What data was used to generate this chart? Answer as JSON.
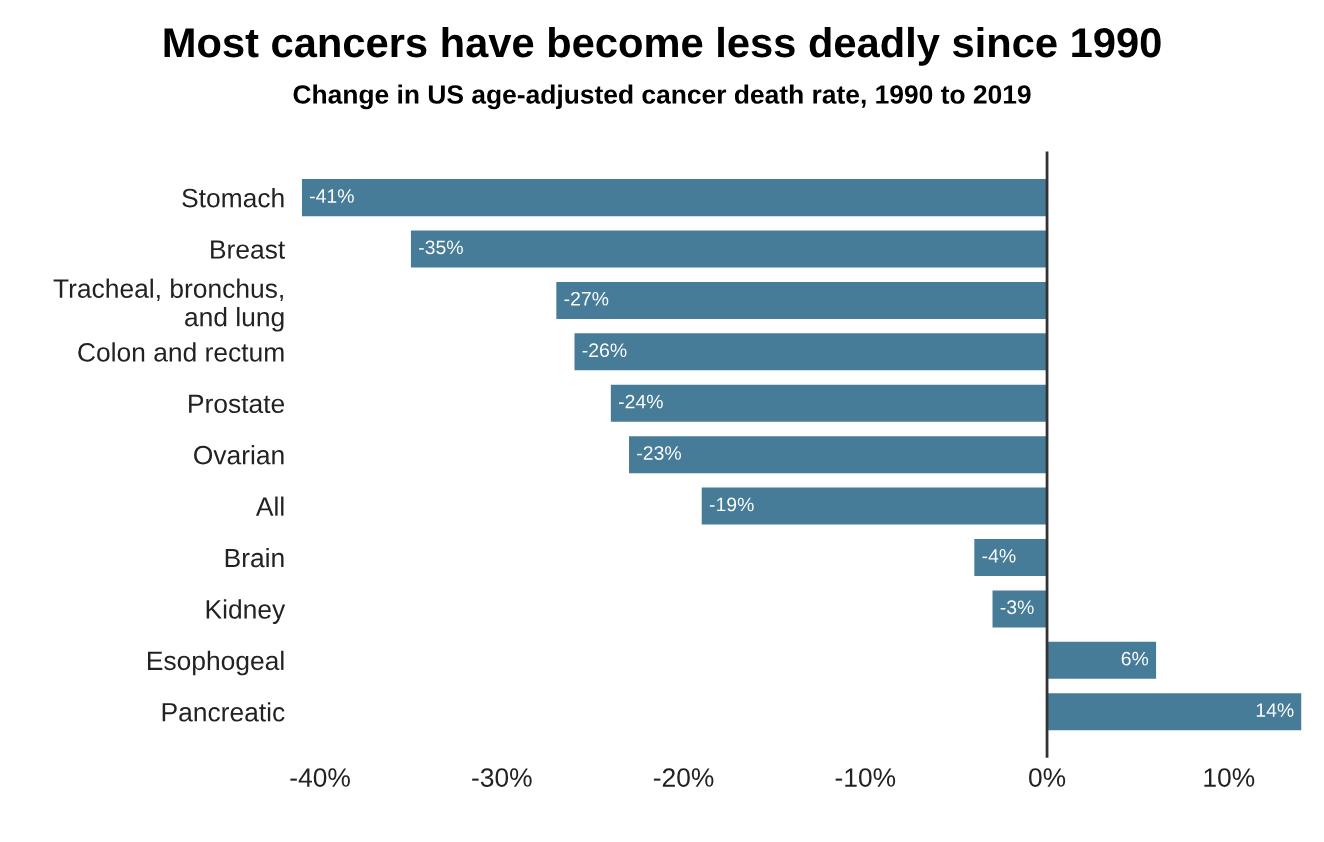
{
  "chart_data": {
    "type": "bar",
    "orientation": "horizontal",
    "title": "Most cancers have become less deadly since 1990",
    "subtitle": "Change in US age-adjusted cancer death rate, 1990 to 2019",
    "categories": [
      "Stomach",
      "Breast",
      "Tracheal, bronchus,\nand lung",
      "Colon and rectum",
      "Prostate",
      "Ovarian",
      "All",
      "Brain",
      "Kidney",
      "Esophogeal",
      "Pancreatic"
    ],
    "values": [
      -41,
      -35,
      -27,
      -26,
      -24,
      -23,
      -19,
      -4,
      -3,
      6,
      14
    ],
    "value_labels": [
      "-41%",
      "-35%",
      "-27%",
      "-26%",
      "-24%",
      "-23%",
      "-19%",
      "-4%",
      "-3%",
      "6%",
      "14%"
    ],
    "color": "#467c98",
    "xlim": [
      -41,
      14
    ],
    "xticks": [
      {
        "value": -40,
        "label": "-40%"
      },
      {
        "value": -30,
        "label": "-30%"
      },
      {
        "value": -20,
        "label": "-20%"
      },
      {
        "value": -10,
        "label": "-10%"
      },
      {
        "value": 0,
        "label": "0%"
      },
      {
        "value": 10,
        "label": "10%"
      }
    ],
    "ref_lines": [
      {
        "axis": "x",
        "value": 0,
        "color": "#333333"
      }
    ],
    "grid": false,
    "legend": false
  }
}
